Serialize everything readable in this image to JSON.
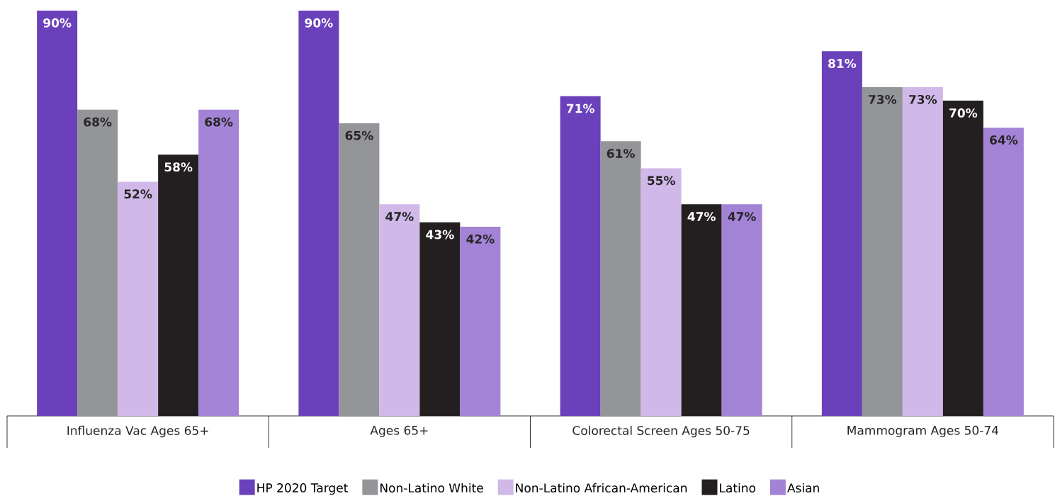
{
  "chart_data": {
    "type": "bar",
    "categories": [
      "Influenza Vac Ages 65+",
      "Ages 65+",
      "Colorectal Screen Ages 50-75",
      "Mammogram Ages 50-74"
    ],
    "series": [
      {
        "name": "HP 2020 Target",
        "color": "#6a41bb",
        "values": [
          90,
          90,
          71,
          81
        ],
        "value_labels": [
          "90%",
          "90%",
          "71%",
          "81%"
        ]
      },
      {
        "name": "Non-Latino White",
        "color": "#949599",
        "values": [
          68,
          65,
          61,
          73
        ],
        "value_labels": [
          "68%",
          "65%",
          "61%",
          "73%"
        ]
      },
      {
        "name": "Non-Latino African-American",
        "color": "#d0b9e8",
        "values": [
          52,
          47,
          55,
          73
        ],
        "value_labels": [
          "52%",
          "47%",
          "55%",
          "73%"
        ]
      },
      {
        "name": "Latino",
        "color": "#231f20",
        "values": [
          58,
          43,
          47,
          70
        ],
        "value_labels": [
          "58%",
          "43%",
          "47%",
          "70%"
        ]
      },
      {
        "name": "Asian",
        "color": "#a383d6",
        "values": [
          68,
          42,
          47,
          64
        ],
        "value_labels": [
          "68%",
          "42%",
          "47%",
          "64%"
        ]
      }
    ],
    "legend": "bottom"
  }
}
